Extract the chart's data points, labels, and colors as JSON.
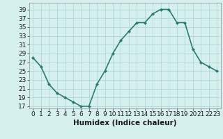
{
  "x": [
    0,
    1,
    2,
    3,
    4,
    5,
    6,
    7,
    8,
    9,
    10,
    11,
    12,
    13,
    14,
    15,
    16,
    17,
    18,
    19,
    20,
    21,
    22,
    23
  ],
  "y": [
    28,
    26,
    22,
    20,
    19,
    18,
    17,
    17,
    22,
    25,
    29,
    32,
    34,
    36,
    36,
    38,
    39,
    39,
    36,
    36,
    30,
    27,
    26,
    25
  ],
  "line_color": "#2d7a6e",
  "marker": "D",
  "marker_size": 2.0,
  "bg_color": "#d6f0ef",
  "grid_color": "#b0d8d8",
  "xlabel": "Humidex (Indice chaleur)",
  "ylabel_ticks": [
    17,
    19,
    21,
    23,
    25,
    27,
    29,
    31,
    33,
    35,
    37,
    39
  ],
  "xlim": [
    -0.5,
    23.5
  ],
  "ylim": [
    16.5,
    40.5
  ],
  "tick_fontsize": 6.5,
  "xlabel_fontsize": 7.5,
  "line_width": 1.2
}
